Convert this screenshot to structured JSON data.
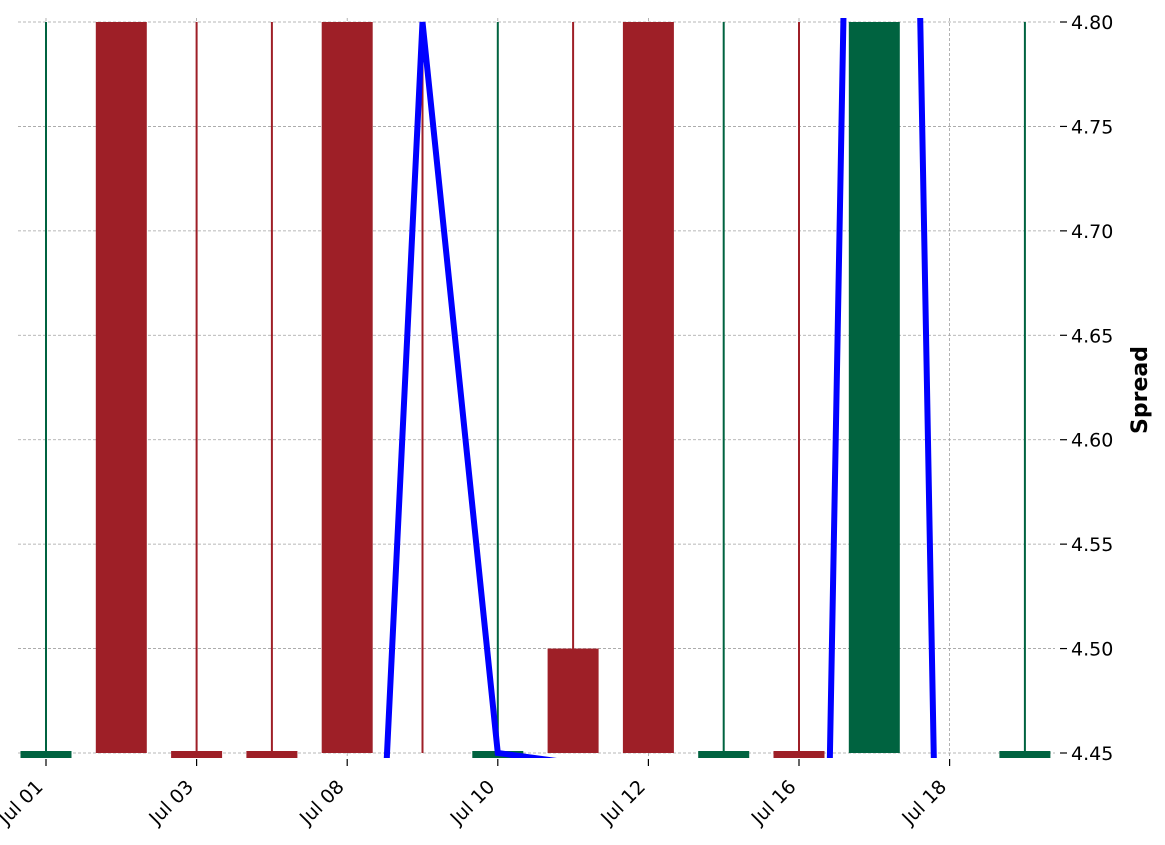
{
  "chart_data": {
    "type": "candlestick",
    "title": "",
    "xlabel": "",
    "ylabel": "Spread",
    "ylim": [
      4.45,
      4.8
    ],
    "x_tick_labels": [
      "Jul 01",
      "Jul 03",
      "Jul 08",
      "Jul 10",
      "Jul 12",
      "Jul 16",
      "Jul 18"
    ],
    "y_tick_labels": [
      "4.45",
      "4.50",
      "4.55",
      "4.60",
      "4.65",
      "4.70",
      "4.75",
      "4.80"
    ],
    "grid": true,
    "y_axis_position": "right",
    "colors": {
      "up": "#006340",
      "down": "#9e1f27",
      "line": "#0000ff"
    },
    "candles": [
      {
        "x": 0,
        "open": 4.45,
        "close": 4.45,
        "high": 4.8,
        "low": 4.45
      },
      {
        "x": 1,
        "open": 4.8,
        "close": 4.45,
        "high": 4.8,
        "low": 4.45
      },
      {
        "x": 2,
        "open": 4.45,
        "close": 4.45,
        "high": 4.8,
        "low": 4.45,
        "direction": "down"
      },
      {
        "x": 3,
        "open": 4.45,
        "close": 4.45,
        "high": 4.8,
        "low": 4.45,
        "direction": "down"
      },
      {
        "x": 4,
        "open": 4.8,
        "close": 4.45,
        "high": 4.8,
        "low": 4.45
      },
      {
        "x": 5,
        "open": 4.8,
        "close": 4.8,
        "high": 4.8,
        "low": 4.45,
        "direction": "down"
      },
      {
        "x": 6,
        "open": 4.45,
        "close": 4.45,
        "high": 4.8,
        "low": 4.45,
        "direction": "up"
      },
      {
        "x": 7,
        "open": 4.5,
        "close": 4.45,
        "high": 4.8,
        "low": 4.45
      },
      {
        "x": 8,
        "open": 4.8,
        "close": 4.45,
        "high": 4.8,
        "low": 4.45
      },
      {
        "x": 9,
        "open": 4.45,
        "close": 4.45,
        "high": 4.8,
        "low": 4.45,
        "direction": "up"
      },
      {
        "x": 10,
        "open": 4.45,
        "close": 4.45,
        "high": 4.8,
        "low": 4.45,
        "direction": "down"
      },
      {
        "x": 11,
        "open": 4.45,
        "close": 4.8,
        "high": 4.8,
        "low": 4.45
      },
      {
        "x": 12,
        "open": 4.45,
        "close": 4.45,
        "high": 4.45,
        "low": 4.45,
        "direction": "up"
      },
      {
        "x": 13,
        "open": 4.45,
        "close": 4.45,
        "high": 4.8,
        "low": 4.45,
        "direction": "up"
      }
    ],
    "line_series": {
      "x": [
        4.5,
        5,
        6,
        10.4,
        10.6,
        11.6,
        11.8
      ],
      "y": [
        4.45,
        4.8,
        4.45,
        4.45,
        4.8,
        4.8,
        4.45
      ]
    }
  }
}
